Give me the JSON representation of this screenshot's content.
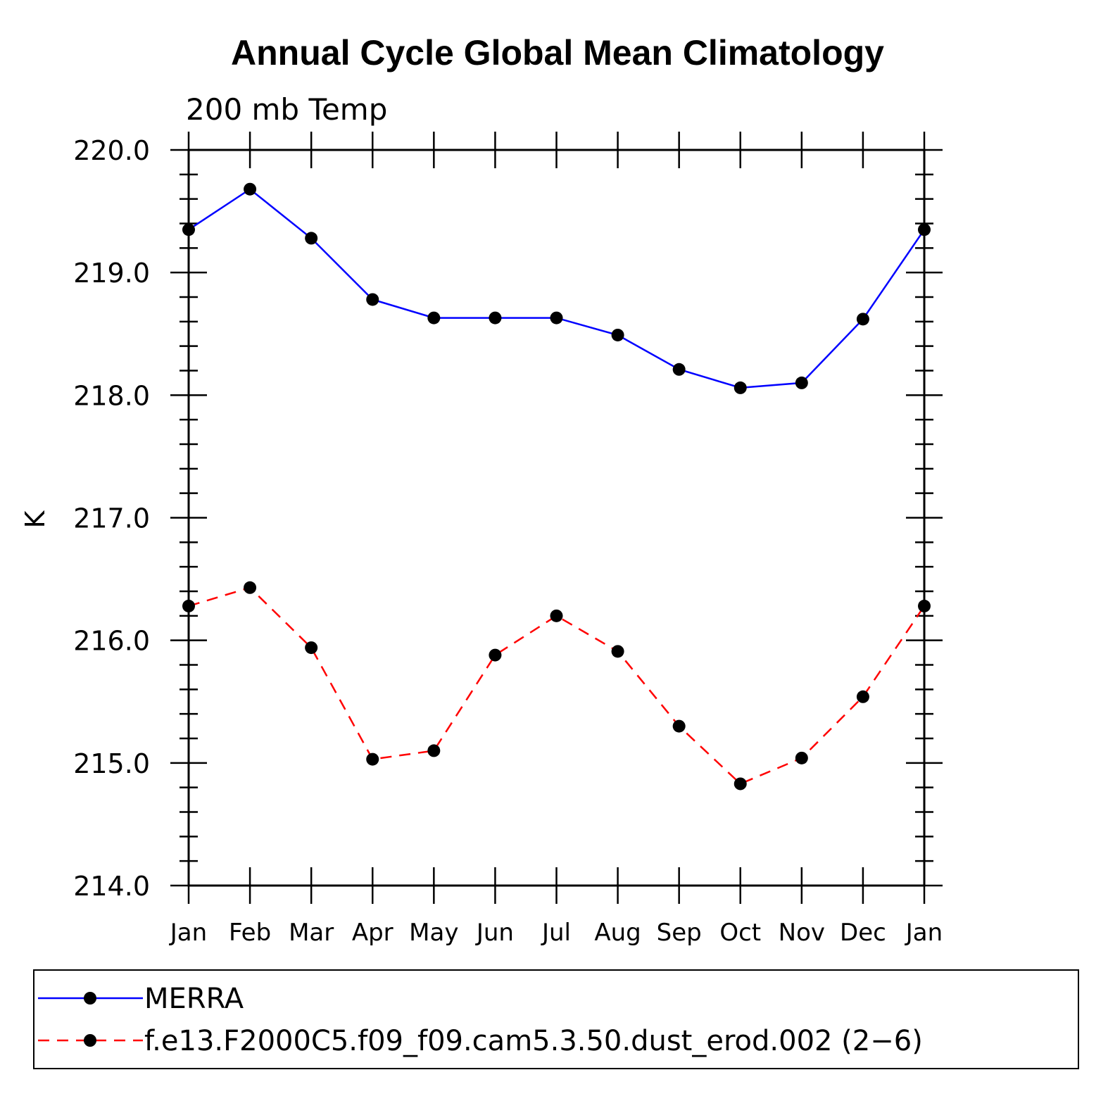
{
  "chart_data": {
    "type": "line",
    "title": "Annual Cycle Global Mean Climatology",
    "subtitle": "200 mb Temp",
    "ylabel": "K",
    "xlabel": "",
    "categories": [
      "Jan",
      "Feb",
      "Mar",
      "Apr",
      "May",
      "Jun",
      "Jul",
      "Aug",
      "Sep",
      "Oct",
      "Nov",
      "Dec",
      "Jan"
    ],
    "ylim": [
      214.0,
      220.0
    ],
    "yticks": [
      "214.0",
      "215.0",
      "216.0",
      "217.0",
      "218.0",
      "219.0",
      "220.0"
    ],
    "grid": false,
    "legend_position": "bottom",
    "series": [
      {
        "name": "MERRA",
        "color": "#0000ff",
        "line_style": "solid",
        "marker": "filled-circle",
        "values": [
          219.35,
          219.68,
          219.28,
          218.78,
          218.63,
          218.63,
          218.63,
          218.49,
          218.21,
          218.06,
          218.1,
          218.62,
          219.35
        ]
      },
      {
        "name": "f.e13.F2000C5.f09_f09.cam5.3.50.dust_erod.002 (2−6)",
        "color": "#ff0000",
        "line_style": "dashed",
        "marker": "filled-circle",
        "values": [
          216.28,
          216.43,
          215.94,
          215.03,
          215.1,
          215.88,
          216.2,
          215.91,
          215.3,
          214.83,
          215.04,
          215.54,
          216.28
        ]
      }
    ]
  }
}
